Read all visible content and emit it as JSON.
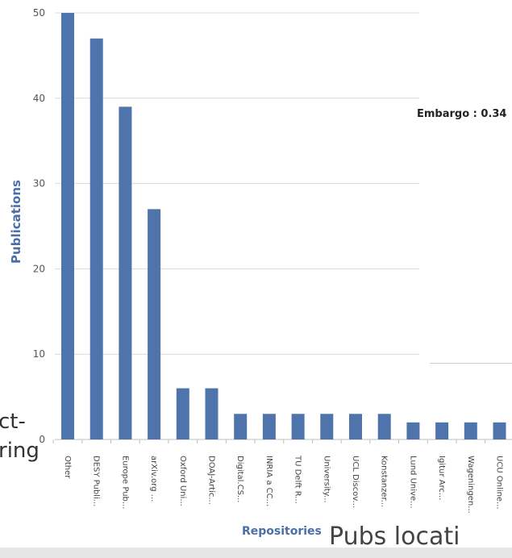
{
  "left_fragments": {
    "top": "ct-",
    "bottom": "ring"
  },
  "right_fragments": {
    "pubs_text": "Pubs locati",
    "embargo_text": "Embargo : 0.34"
  },
  "chart_data": {
    "type": "bar",
    "xlabel": "Repositories",
    "ylabel": "Publications",
    "ylim": [
      0,
      50
    ],
    "yticks": [
      0,
      10,
      20,
      30,
      40,
      50
    ],
    "grid": true,
    "bar_color": "#4f74ab",
    "categories": [
      "Other",
      "DESY Publi...",
      "Europe Pub...",
      "arXiv.org ...",
      "Oxford Uni...",
      "DOAJ-Artic...",
      "Digital.CS...",
      "INRIA a CC...",
      "TU Delft R...",
      "University...",
      "UCL Discov...",
      "Konstanzer...",
      "Lund Unive...",
      "Igitur Arc...",
      "Wageningen...",
      "UCU Online..."
    ],
    "values": [
      50,
      47,
      39,
      27,
      6,
      6,
      3,
      3,
      3,
      3,
      3,
      3,
      2,
      2,
      2,
      2
    ]
  }
}
